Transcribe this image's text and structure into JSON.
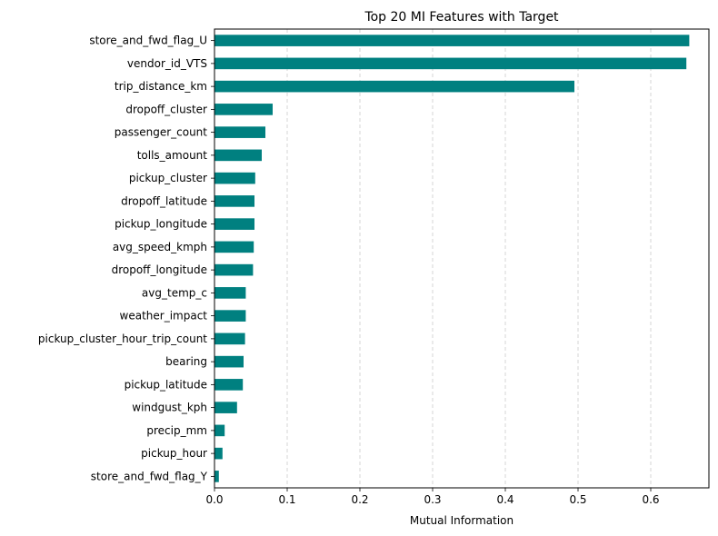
{
  "chart_data": {
    "type": "bar",
    "orientation": "horizontal",
    "title": "Top 20 MI Features with Target",
    "xlabel": "Mutual Information",
    "ylabel": "",
    "xlim": [
      0,
      0.68
    ],
    "xticks": [
      0.0,
      0.1,
      0.2,
      0.3,
      0.4,
      0.5,
      0.6
    ],
    "xtick_labels": [
      "0.0",
      "0.1",
      "0.2",
      "0.3",
      "0.4",
      "0.5",
      "0.6"
    ],
    "grid": "x-dashed",
    "bar_color": "#008080",
    "categories": [
      "store_and_fwd_flag_U",
      "vendor_id_VTS",
      "trip_distance_km",
      "dropoff_cluster",
      "passenger_count",
      "tolls_amount",
      "pickup_cluster",
      "dropoff_latitude",
      "pickup_longitude",
      "avg_speed_kmph",
      "dropoff_longitude",
      "avg_temp_c",
      "weather_impact",
      "pickup_cluster_hour_trip_count",
      "bearing",
      "pickup_latitude",
      "windgust_kph",
      "precip_mm",
      "pickup_hour",
      "store_and_fwd_flag_Y"
    ],
    "values": [
      0.653,
      0.649,
      0.495,
      0.08,
      0.07,
      0.065,
      0.056,
      0.055,
      0.055,
      0.054,
      0.053,
      0.043,
      0.043,
      0.042,
      0.04,
      0.039,
      0.031,
      0.014,
      0.011,
      0.006
    ]
  }
}
